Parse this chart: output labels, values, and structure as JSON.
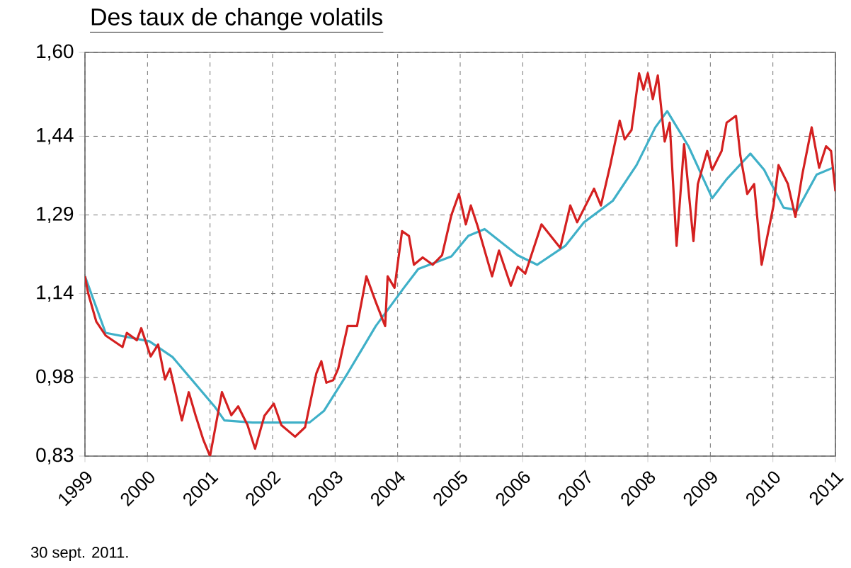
{
  "chart_data": {
    "type": "line",
    "title": "Des taux de change volatils",
    "xlim": [
      1999,
      2011
    ],
    "ylim": [
      0.83,
      1.6
    ],
    "xticks": [
      1999,
      2000,
      2001,
      2002,
      2003,
      2004,
      2005,
      2006,
      2007,
      2008,
      2009,
      2010,
      2011
    ],
    "yticks": [
      {
        "value": 0.83,
        "label": "0,83"
      },
      {
        "value": 0.98,
        "label": "0,98"
      },
      {
        "value": 1.14,
        "label": "1,14"
      },
      {
        "value": 1.29,
        "label": "1,29"
      },
      {
        "value": 1.44,
        "label": "1,44"
      },
      {
        "value": 1.6,
        "label": "1,60"
      }
    ],
    "grid": true,
    "line_style": "solid",
    "marker": "none",
    "annotations": [
      "30 sept. 2011."
    ],
    "series": [
      {
        "color": "#3fb0c8",
        "x": [
          1999.0,
          1999.33,
          2000.03,
          2000.4,
          2001.07,
          2001.23,
          2001.68,
          2002.59,
          2002.82,
          2003.2,
          2003.65,
          2004.1,
          2004.33,
          2004.86,
          2005.13,
          2005.39,
          2005.92,
          2006.23,
          2006.68,
          2006.98,
          2007.44,
          2007.82,
          2008.12,
          2008.31,
          2008.65,
          2009.03,
          2009.26,
          2009.64,
          2009.86,
          2010.17,
          2010.39,
          2010.7,
          2010.96
        ],
        "values": [
          1.173,
          1.065,
          1.049,
          1.019,
          0.925,
          0.898,
          0.894,
          0.894,
          0.916,
          0.988,
          1.078,
          1.151,
          1.187,
          1.211,
          1.25,
          1.263,
          1.213,
          1.195,
          1.231,
          1.276,
          1.317,
          1.385,
          1.457,
          1.488,
          1.421,
          1.322,
          1.358,
          1.407,
          1.376,
          1.304,
          1.299,
          1.367,
          1.38
        ]
      },
      {
        "color": "#d42020",
        "x": [
          1999.0,
          1999.05,
          1999.18,
          1999.33,
          1999.6,
          1999.67,
          1999.83,
          1999.9,
          2000.05,
          2000.17,
          2000.28,
          2000.36,
          2000.55,
          2000.66,
          2000.77,
          2000.89,
          2001.0,
          2001.19,
          2001.34,
          2001.45,
          2001.6,
          2001.72,
          2001.87,
          2002.02,
          2002.14,
          2002.36,
          2002.52,
          2002.7,
          2002.78,
          2002.86,
          2002.97,
          2003.05,
          2003.2,
          2003.35,
          2003.5,
          2003.65,
          2003.8,
          2003.84,
          2003.95,
          2004.07,
          2004.18,
          2004.26,
          2004.4,
          2004.56,
          2004.71,
          2004.86,
          2004.98,
          2005.09,
          2005.17,
          2005.28,
          2005.51,
          2005.62,
          2005.81,
          2005.92,
          2006.04,
          2006.3,
          2006.6,
          2006.76,
          2006.87,
          2007.14,
          2007.25,
          2007.4,
          2007.55,
          2007.63,
          2007.74,
          2007.86,
          2007.93,
          2008.0,
          2008.08,
          2008.16,
          2008.27,
          2008.35,
          2008.46,
          2008.58,
          2008.73,
          2008.8,
          2008.95,
          2009.03,
          2009.18,
          2009.26,
          2009.41,
          2009.48,
          2009.59,
          2009.7,
          2009.82,
          2010.01,
          2010.09,
          2010.24,
          2010.36,
          2010.47,
          2010.62,
          2010.74,
          2010.85,
          2010.93,
          2011.0
        ],
        "values": [
          1.173,
          1.141,
          1.087,
          1.06,
          1.038,
          1.065,
          1.051,
          1.074,
          1.02,
          1.043,
          0.976,
          0.997,
          0.898,
          0.952,
          0.907,
          0.862,
          0.83,
          0.952,
          0.908,
          0.925,
          0.889,
          0.844,
          0.907,
          0.93,
          0.889,
          0.867,
          0.885,
          0.988,
          1.011,
          0.97,
          0.975,
          0.997,
          1.078,
          1.078,
          1.173,
          1.124,
          1.078,
          1.173,
          1.151,
          1.259,
          1.25,
          1.195,
          1.209,
          1.195,
          1.213,
          1.29,
          1.33,
          1.272,
          1.308,
          1.268,
          1.173,
          1.222,
          1.155,
          1.191,
          1.178,
          1.272,
          1.227,
          1.308,
          1.276,
          1.34,
          1.308,
          1.385,
          1.47,
          1.434,
          1.452,
          1.56,
          1.529,
          1.56,
          1.511,
          1.556,
          1.43,
          1.466,
          1.231,
          1.425,
          1.24,
          1.349,
          1.412,
          1.376,
          1.412,
          1.466,
          1.479,
          1.403,
          1.33,
          1.349,
          1.195,
          1.308,
          1.385,
          1.349,
          1.286,
          1.367,
          1.457,
          1.38,
          1.421,
          1.412,
          1.335
        ]
      }
    ]
  }
}
